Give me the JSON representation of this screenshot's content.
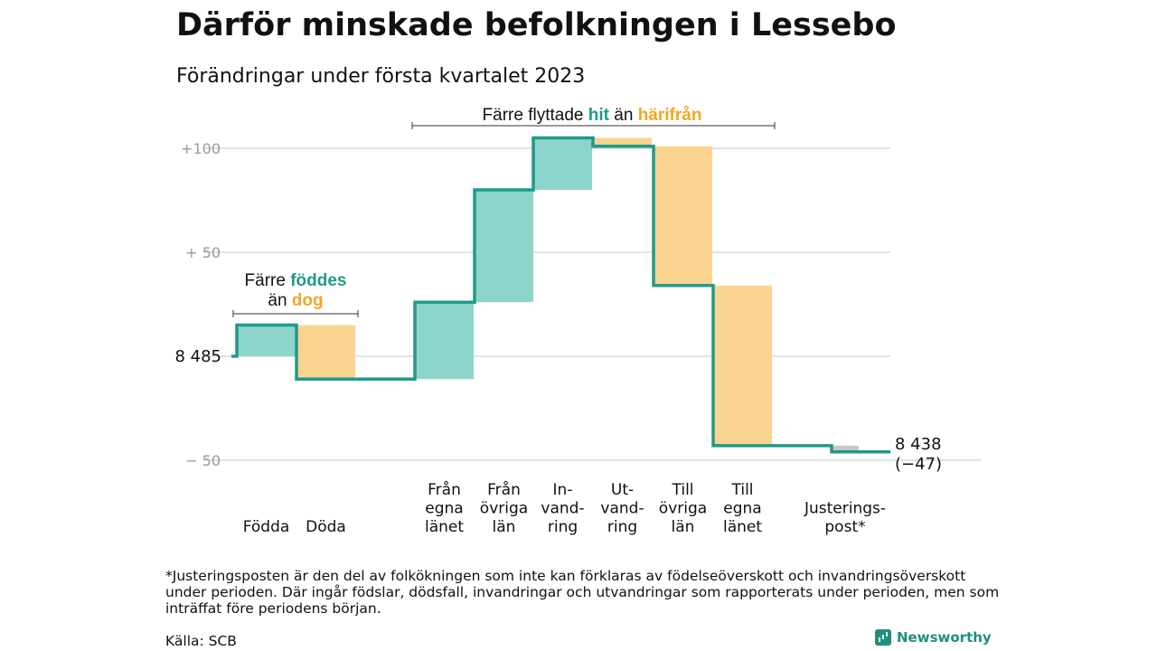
{
  "title": "Därför minskade befolkningen i Lessebo",
  "subtitle": "Förändringar under första kvartalet 2023",
  "footnote": "*Justeringsposten är den del av folkökningen som inte kan förklaras av födelseöverskott och invandringsöverskott under perioden. Där ingår födslar, dödsfall, invandringar och utvandringar som rapporterats under perioden, men som inträffat före periodens början.",
  "source": "Källa: SCB",
  "brand": "Newsworthy",
  "colors": {
    "teal": "#1f9a8a",
    "teal_fill": "#8dd5cb",
    "orange": "#f5a623",
    "orange_fill": "#fad38f",
    "gray_fill": "#c9c9c9",
    "grid": "#d9d9d9",
    "axis_text": "#999999"
  },
  "chart_data": {
    "type": "waterfall",
    "start_value": 8485,
    "start_label": "8 485",
    "end_label": "8 438",
    "end_change_label": "(−47)",
    "ylim": [
      -55,
      108
    ],
    "y_ticks": [
      {
        "value": 100,
        "label": "+100"
      },
      {
        "value": 50,
        "label": "+ 50"
      },
      {
        "value": 0,
        "label": ""
      },
      {
        "value": -50,
        "label": "− 50"
      }
    ],
    "categories": [
      "Födda",
      "Döda",
      "Från egna länet",
      "Från övriga län",
      "In-vandring",
      "Ut-vandring",
      "Till övriga län",
      "Till egna länet",
      "Justerings-post*"
    ],
    "category_lines": [
      [
        "Födda"
      ],
      [
        "Döda"
      ],
      [
        "Från",
        "egna",
        "länet"
      ],
      [
        "Från",
        "övriga",
        "län"
      ],
      [
        "In-",
        "vand-",
        "ring"
      ],
      [
        "Ut-",
        "vand-",
        "ring"
      ],
      [
        "Till",
        "övriga",
        "län"
      ],
      [
        "Till",
        "egna",
        "länet"
      ],
      [
        "Justerings-",
        "post*"
      ]
    ],
    "values": [
      15,
      -26,
      37,
      54,
      25,
      -4,
      -67,
      -77,
      -3
    ],
    "annotations": [
      {
        "text_parts": [
          [
            "Färre ",
            "plain"
          ],
          [
            "föddes",
            "teal"
          ]
        ],
        "text_parts2": [
          [
            "än ",
            "plain"
          ],
          [
            "dog",
            "orange"
          ]
        ]
      },
      {
        "text_parts": [
          [
            "Färre flyttade ",
            "plain"
          ],
          [
            "hit",
            "teal"
          ],
          [
            " än ",
            "plain"
          ],
          [
            "härifrån",
            "orange"
          ]
        ]
      }
    ]
  }
}
